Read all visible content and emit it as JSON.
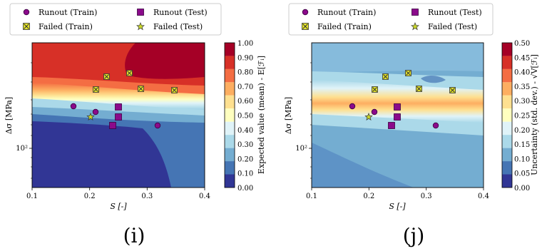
{
  "chart_data": [
    {
      "type": "heatmap",
      "panel_label": "(i)",
      "xlabel": "S [-]",
      "ylabel": "Δσ [MPa]",
      "xlim": [
        0.1,
        0.4
      ],
      "x_ticks": [
        "0.1",
        "0.2",
        "0.3",
        "0.4"
      ],
      "y_scale": "log",
      "y_ticks": [
        "10²"
      ],
      "colorbar": {
        "label": "Expected value (mean) - E[ℱᵢ]",
        "range": [
          0.0,
          1.0
        ],
        "ticks": [
          "0.00",
          "0.10",
          "0.20",
          "0.30",
          "0.40",
          "0.50",
          "0.60",
          "0.70",
          "0.80",
          "0.90",
          "1.00"
        ],
        "colors": [
          "#313695",
          "#4575b4",
          "#74add1",
          "#abd9e9",
          "#e0f3f8",
          "#ffffbf",
          "#fee090",
          "#fdae61",
          "#f46d43",
          "#d73027",
          "#a50026"
        ]
      },
      "legend": {
        "placement": "top",
        "entries": [
          "Runout (Train)",
          "Runout (Test)",
          "Failed (Train)",
          "Failed (Test)"
        ]
      },
      "points": {
        "runout_train": [
          [
            0.17,
            143
          ],
          [
            0.21,
            139
          ],
          [
            0.32,
            128
          ]
        ],
        "runout_test": [
          [
            0.25,
            144
          ],
          [
            0.25,
            134
          ],
          [
            0.24,
            129
          ]
        ],
        "failed_train": [
          [
            0.23,
            167
          ],
          [
            0.27,
            169
          ],
          [
            0.21,
            155
          ],
          [
            0.29,
            156
          ],
          [
            0.35,
            155
          ]
        ],
        "failed_test": [
          [
            0.2,
            135
          ]
        ]
      }
    },
    {
      "type": "heatmap",
      "panel_label": "(j)",
      "xlabel": "S [-]",
      "ylabel": "Δσ [MPa]",
      "xlim": [
        0.1,
        0.4
      ],
      "x_ticks": [
        "0.1",
        "0.2",
        "0.3",
        "0.4"
      ],
      "y_scale": "log",
      "y_ticks": [
        "10²"
      ],
      "colorbar": {
        "label": "Uncertainty (std. dev.) - √V[ℱᵢ]",
        "range": [
          0.0,
          0.5
        ],
        "ticks": [
          "0.00",
          "0.05",
          "0.10",
          "0.15",
          "0.20",
          "0.25",
          "0.30",
          "0.35",
          "0.40",
          "0.45",
          "0.50"
        ],
        "colors": [
          "#313695",
          "#4575b4",
          "#74add1",
          "#abd9e9",
          "#e0f3f8",
          "#ffffbf",
          "#fee090",
          "#fdae61",
          "#f46d43",
          "#d73027",
          "#a50026"
        ]
      },
      "legend": {
        "placement": "top",
        "entries": [
          "Runout (Train)",
          "Runout (Test)",
          "Failed (Train)",
          "Failed (Test)"
        ]
      },
      "points": {
        "runout_train": [
          [
            0.17,
            143
          ],
          [
            0.21,
            139
          ],
          [
            0.32,
            128
          ]
        ],
        "runout_test": [
          [
            0.25,
            144
          ],
          [
            0.25,
            134
          ],
          [
            0.24,
            129
          ]
        ],
        "failed_train": [
          [
            0.23,
            167
          ],
          [
            0.27,
            169
          ],
          [
            0.21,
            155
          ],
          [
            0.29,
            156
          ],
          [
            0.35,
            155
          ]
        ],
        "failed_test": [
          [
            0.2,
            135
          ]
        ]
      }
    }
  ]
}
